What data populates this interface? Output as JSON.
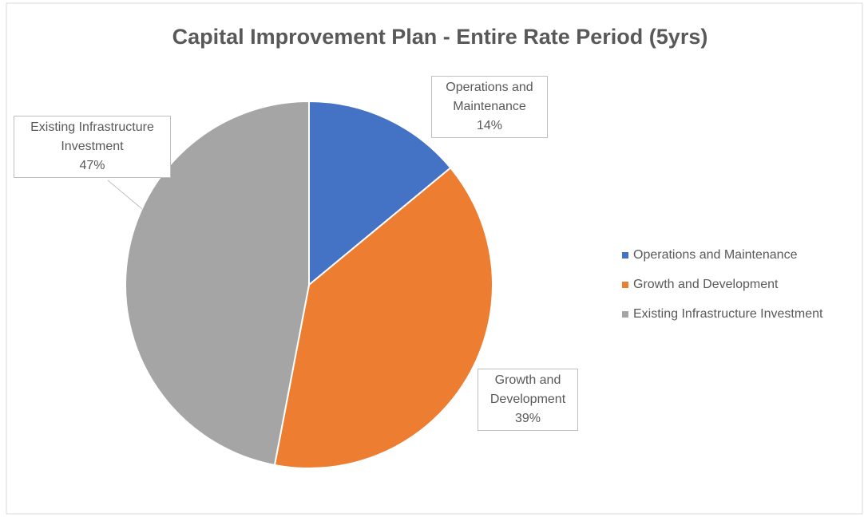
{
  "chart_data": {
    "type": "pie",
    "title": "Capital Improvement  Plan - Entire Rate Period (5yrs)",
    "categories": [
      "Operations and Maintenance",
      "Growth and Development",
      "Existing Infrastructure Investment"
    ],
    "values": [
      14,
      39,
      47
    ],
    "value_labels": [
      "14%",
      "39%",
      "47%"
    ],
    "colors": [
      "#4472c4",
      "#ed7d31",
      "#a5a5a5"
    ],
    "legend": "right"
  }
}
